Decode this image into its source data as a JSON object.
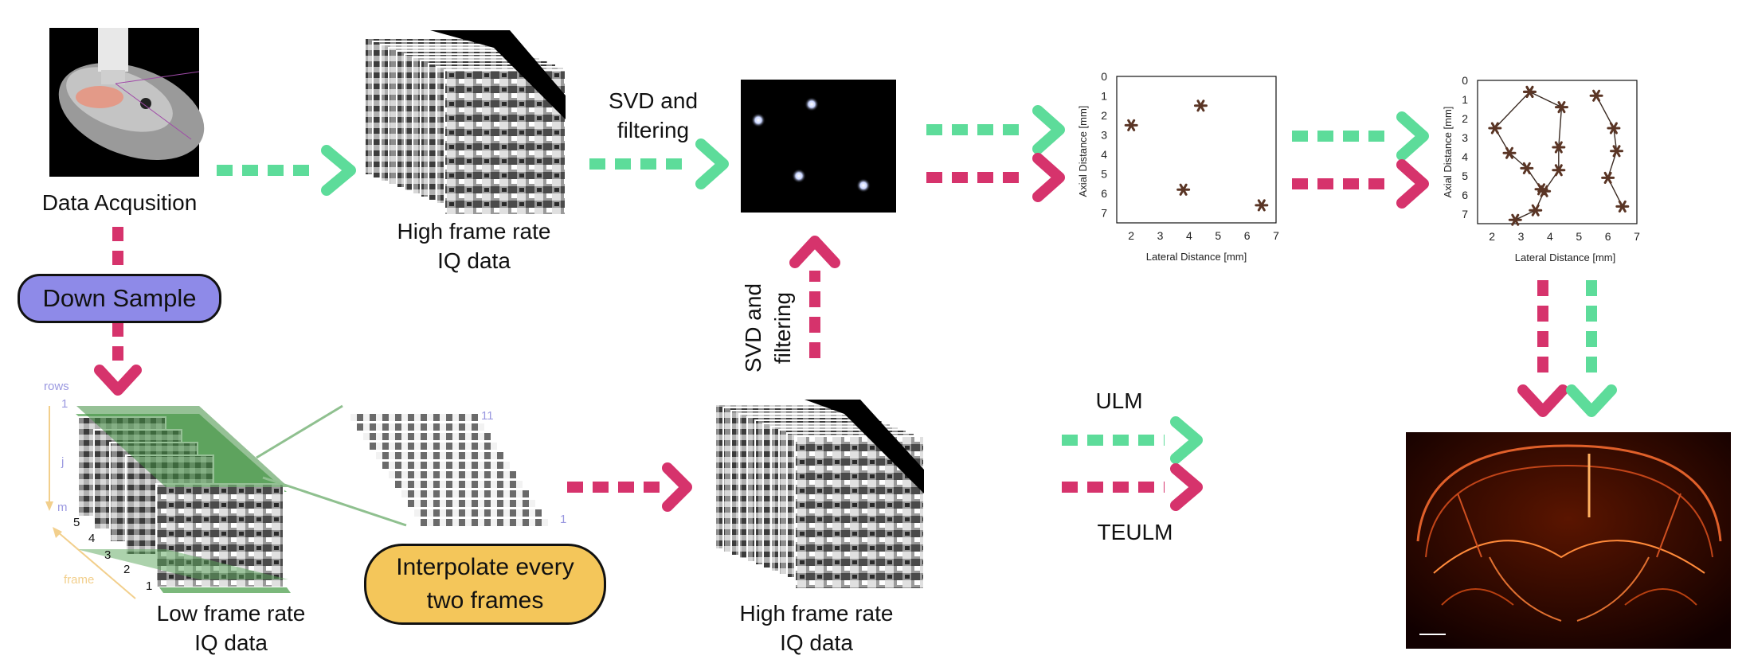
{
  "labels": {
    "data_acquisition": "Data Acqusition",
    "high_frame_rate_top_1": "High frame rate",
    "high_frame_rate_top_2": "IQ data",
    "svd_top_1": "SVD and",
    "svd_top_2": "filtering",
    "svd_vertical_1": "SVD and",
    "svd_vertical_2": "filtering",
    "down_sample": "Down Sample",
    "low_frame_rate_1": "Low frame rate",
    "low_frame_rate_2": "IQ data",
    "interpolate_1": "Interpolate every",
    "interpolate_2": "two frames",
    "high_frame_rate_bottom_1": "High frame rate",
    "high_frame_rate_bottom_2": "IQ data",
    "ulm": "ULM",
    "teulm": "TEULM"
  },
  "volume_axes": {
    "rows": "rows",
    "row_first": "1",
    "row_mid": "j",
    "row_last": "m",
    "frame": "frame",
    "frame_ticks": [
      "5",
      "4",
      "3",
      "2",
      "1"
    ]
  },
  "strip_labels": {
    "top": "11",
    "bottom": "1"
  },
  "colors": {
    "green_arrow": "#5ddc9a",
    "pink_arrow": "#d6336c",
    "down_sample_fill": "#8e8ae8",
    "interpolate_fill": "#f4c65a",
    "axis_purple": "#9a98e0",
    "axis_yellow": "#f2cf8c",
    "marker": "#5a3525",
    "volume_green": "#4f9a50"
  },
  "chart_data": [
    {
      "type": "scatter",
      "title": "",
      "xlabel": "Lateral Distance [mm]",
      "ylabel": "Axial Distance [mm]",
      "xlim": [
        1.5,
        7
      ],
      "ylim": [
        0,
        7.5
      ],
      "y_inverted": true,
      "xticks": [
        "2",
        "3",
        "4",
        "5",
        "6",
        "7"
      ],
      "yticks": [
        "0",
        "1",
        "2",
        "3",
        "4",
        "5",
        "6",
        "7"
      ],
      "marker": "asterisk",
      "points": [
        [
          2,
          2.5
        ],
        [
          4.4,
          1.5
        ],
        [
          3.8,
          5.8
        ],
        [
          6.5,
          6.6
        ]
      ]
    },
    {
      "type": "line",
      "title": "",
      "xlabel": "Lateral Distance [mm]",
      "ylabel": "Axial Distance [mm]",
      "xlim": [
        1.5,
        7
      ],
      "ylim": [
        0,
        7.5
      ],
      "y_inverted": true,
      "xticks": [
        "2",
        "3",
        "4",
        "5",
        "6",
        "7"
      ],
      "yticks": [
        "0",
        "1",
        "2",
        "3",
        "4",
        "5",
        "6",
        "7"
      ],
      "marker": "asterisk",
      "series": [
        {
          "points": [
            [
              3.3,
              0.6
            ],
            [
              4.4,
              1.4
            ],
            [
              4.3,
              3.5
            ],
            [
              4.3,
              4.7
            ],
            [
              3.8,
              5.8
            ],
            [
              3.5,
              6.8
            ],
            [
              2.8,
              7.3
            ]
          ]
        },
        {
          "points": [
            [
              3.3,
              0.6
            ],
            [
              2.1,
              2.5
            ],
            [
              2.6,
              3.8
            ],
            [
              3.2,
              4.6
            ],
            [
              3.7,
              5.7
            ]
          ]
        },
        {
          "points": [
            [
              5.6,
              0.8
            ],
            [
              6.2,
              2.5
            ],
            [
              6.3,
              3.7
            ],
            [
              6.0,
              5.1
            ],
            [
              6.5,
              6.6
            ]
          ]
        }
      ]
    }
  ]
}
